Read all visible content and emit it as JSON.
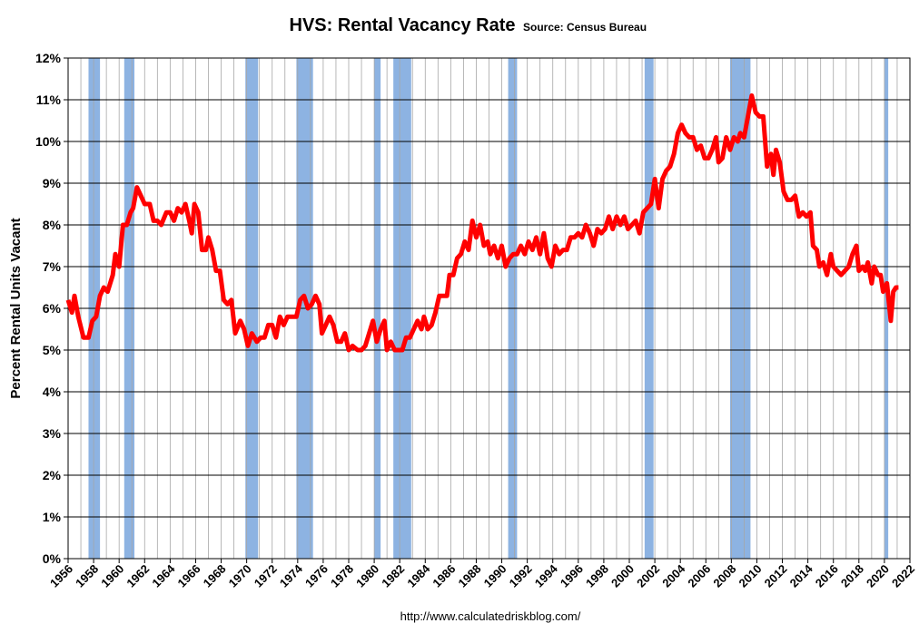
{
  "chart_data": {
    "type": "line",
    "title": "HVS: Rental Vacancy Rate",
    "subtitle": "Source: Census Bureau",
    "ylabel": "Percent Rental Units Vacant",
    "footer": "http://www.calculatedriskblog.com/",
    "x": [
      1956.0,
      1956.3,
      1956.5,
      1956.8,
      1957.2,
      1957.6,
      1957.9,
      1958.2,
      1958.5,
      1958.8,
      1959.1,
      1959.5,
      1959.7,
      1960.0,
      1960.3,
      1960.6,
      1960.9,
      1961.1,
      1961.4,
      1961.7,
      1962.0,
      1962.4,
      1962.7,
      1963.0,
      1963.3,
      1963.7,
      1964.0,
      1964.3,
      1964.6,
      1964.9,
      1965.2,
      1965.5,
      1965.7,
      1965.9,
      1966.2,
      1966.5,
      1966.8,
      1967.0,
      1967.3,
      1967.6,
      1967.9,
      1968.2,
      1968.5,
      1968.8,
      1969.1,
      1969.5,
      1969.8,
      1970.1,
      1970.4,
      1970.8,
      1971.1,
      1971.4,
      1971.7,
      1972.0,
      1972.3,
      1972.6,
      1972.9,
      1973.2,
      1973.6,
      1973.9,
      1974.2,
      1974.5,
      1974.8,
      1975.1,
      1975.4,
      1975.7,
      1975.9,
      1976.2,
      1976.5,
      1976.8,
      1977.1,
      1977.4,
      1977.7,
      1978.0,
      1978.3,
      1978.7,
      1979.0,
      1979.3,
      1979.6,
      1979.9,
      1980.2,
      1980.5,
      1980.8,
      1981.0,
      1981.3,
      1981.6,
      1981.9,
      1982.2,
      1982.5,
      1982.8,
      1983.1,
      1983.4,
      1983.7,
      1983.9,
      1984.2,
      1984.5,
      1984.8,
      1985.1,
      1985.4,
      1985.7,
      1985.9,
      1986.2,
      1986.5,
      1986.8,
      1987.1,
      1987.4,
      1987.7,
      1988.0,
      1988.3,
      1988.6,
      1988.9,
      1989.1,
      1989.4,
      1989.7,
      1990.0,
      1990.3,
      1990.6,
      1990.9,
      1991.2,
      1991.5,
      1991.8,
      1992.1,
      1992.4,
      1992.7,
      1993.0,
      1993.3,
      1993.6,
      1993.9,
      1994.2,
      1994.5,
      1994.8,
      1995.1,
      1995.4,
      1995.7,
      1996.0,
      1996.3,
      1996.6,
      1996.9,
      1997.2,
      1997.5,
      1997.8,
      1998.1,
      1998.4,
      1998.7,
      1999.0,
      1999.3,
      1999.6,
      1999.9,
      2000.2,
      2000.5,
      2000.8,
      2001.1,
      2001.4,
      2001.7,
      2002.0,
      2002.3,
      2002.6,
      2002.9,
      2003.2,
      2003.5,
      2003.8,
      2004.1,
      2004.4,
      2004.7,
      2005.0,
      2005.3,
      2005.6,
      2005.9,
      2006.2,
      2006.5,
      2006.8,
      2007.0,
      2007.3,
      2007.6,
      2007.9,
      2008.2,
      2008.5,
      2008.7,
      2009.0,
      2009.3,
      2009.6,
      2009.9,
      2010.2,
      2010.5,
      2010.8,
      2011.1,
      2011.3,
      2011.5,
      2011.8,
      2012.1,
      2012.4,
      2012.7,
      2013.0,
      2013.3,
      2013.6,
      2013.9,
      2014.2,
      2014.4,
      2014.7,
      2014.9,
      2015.2,
      2015.5,
      2015.8,
      2016.0,
      2016.3,
      2016.6,
      2016.9,
      2017.2,
      2017.5,
      2017.8,
      2018.0,
      2018.3,
      2018.5,
      2018.7,
      2019.0,
      2019.2,
      2019.5,
      2019.7,
      2019.9,
      2020.2,
      2020.5,
      2020.7,
      2020.9,
      2021.1
    ],
    "series": [
      {
        "name": "Rental Vacancy Rate",
        "color": "#ff0000",
        "values": [
          6.2,
          5.9,
          6.3,
          5.8,
          5.3,
          5.3,
          5.7,
          5.8,
          6.3,
          6.5,
          6.4,
          6.8,
          7.3,
          7.0,
          8.0,
          8.0,
          8.3,
          8.4,
          8.9,
          8.7,
          8.5,
          8.5,
          8.1,
          8.1,
          8.0,
          8.3,
          8.3,
          8.1,
          8.4,
          8.3,
          8.5,
          8.1,
          7.8,
          8.5,
          8.3,
          7.4,
          7.4,
          7.7,
          7.4,
          6.9,
          6.9,
          6.2,
          6.1,
          6.2,
          5.4,
          5.7,
          5.5,
          5.1,
          5.4,
          5.2,
          5.3,
          5.3,
          5.6,
          5.6,
          5.3,
          5.8,
          5.6,
          5.8,
          5.8,
          5.8,
          6.2,
          6.3,
          6.0,
          6.1,
          6.3,
          6.1,
          5.4,
          5.6,
          5.8,
          5.6,
          5.2,
          5.2,
          5.4,
          5.0,
          5.1,
          5.0,
          5.0,
          5.1,
          5.4,
          5.7,
          5.2,
          5.5,
          5.7,
          5.0,
          5.2,
          5.0,
          5.0,
          5.0,
          5.3,
          5.3,
          5.5,
          5.7,
          5.5,
          5.8,
          5.5,
          5.6,
          5.9,
          6.3,
          6.3,
          6.3,
          6.8,
          6.8,
          7.2,
          7.3,
          7.6,
          7.4,
          8.1,
          7.7,
          8.0,
          7.5,
          7.6,
          7.3,
          7.5,
          7.2,
          7.5,
          7.0,
          7.2,
          7.3,
          7.3,
          7.5,
          7.3,
          7.6,
          7.4,
          7.7,
          7.3,
          7.8,
          7.2,
          7.0,
          7.5,
          7.3,
          7.4,
          7.4,
          7.7,
          7.7,
          7.8,
          7.7,
          8.0,
          7.8,
          7.5,
          7.9,
          7.8,
          7.9,
          8.2,
          7.9,
          8.2,
          8.0,
          8.2,
          7.9,
          8.0,
          8.1,
          7.8,
          8.3,
          8.4,
          8.5,
          9.1,
          8.4,
          9.1,
          9.3,
          9.4,
          9.7,
          10.2,
          10.4,
          10.2,
          10.1,
          10.1,
          9.8,
          9.9,
          9.6,
          9.6,
          9.8,
          10.1,
          9.5,
          9.6,
          10.1,
          9.8,
          10.1,
          10.0,
          10.2,
          10.1,
          10.6,
          11.1,
          10.7,
          10.6,
          10.6,
          9.4,
          9.7,
          9.2,
          9.8,
          9.5,
          8.8,
          8.6,
          8.6,
          8.7,
          8.2,
          8.3,
          8.2,
          8.3,
          7.5,
          7.4,
          7.0,
          7.1,
          6.8,
          7.3,
          7.0,
          6.9,
          6.8,
          6.9,
          7.0,
          7.3,
          7.5,
          6.9,
          7.0,
          6.9,
          7.1,
          6.6,
          7.0,
          6.8,
          6.8,
          6.4,
          6.6,
          5.7,
          6.4,
          6.5,
          6.5
        ]
      }
    ],
    "recession_color": "#8db3e2",
    "recessions": [
      [
        1957.6,
        1958.5
      ],
      [
        1960.4,
        1961.2
      ],
      [
        1969.9,
        1970.9
      ],
      [
        1973.9,
        1975.2
      ],
      [
        1980.0,
        1980.5
      ],
      [
        1981.5,
        1982.9
      ],
      [
        1990.5,
        1991.2
      ],
      [
        2001.2,
        2001.9
      ],
      [
        2007.9,
        2009.5
      ],
      [
        2020.0,
        2020.3
      ]
    ],
    "xlim": [
      1956,
      2022
    ],
    "xticks": [
      1956,
      1958,
      1960,
      1962,
      1964,
      1966,
      1968,
      1970,
      1972,
      1974,
      1976,
      1978,
      1980,
      1982,
      1984,
      1986,
      1988,
      1990,
      1992,
      1994,
      1996,
      1998,
      2000,
      2002,
      2004,
      2006,
      2008,
      2010,
      2012,
      2014,
      2016,
      2018,
      2020,
      2022
    ],
    "xminor": [
      1957,
      1959,
      1961,
      1963,
      1965,
      1967,
      1969,
      1971,
      1973,
      1975,
      1977,
      1979,
      1981,
      1983,
      1985,
      1987,
      1989,
      1991,
      1993,
      1995,
      1997,
      1999,
      2001,
      2003,
      2005,
      2007,
      2009,
      2011,
      2013,
      2015,
      2017,
      2019,
      2021
    ],
    "ylim": [
      0,
      12
    ],
    "yticks": [
      {
        "value": 0,
        "label": "0%"
      },
      {
        "value": 1,
        "label": "1%"
      },
      {
        "value": 2,
        "label": "2%"
      },
      {
        "value": 3,
        "label": "3%"
      },
      {
        "value": 4,
        "label": "4%"
      },
      {
        "value": 5,
        "label": "5%"
      },
      {
        "value": 6,
        "label": "6%"
      },
      {
        "value": 7,
        "label": "7%"
      },
      {
        "value": 8,
        "label": "8%"
      },
      {
        "value": 9,
        "label": "9%"
      },
      {
        "value": 10,
        "label": "10%"
      },
      {
        "value": 11,
        "label": "11%"
      },
      {
        "value": 12,
        "label": "12%"
      }
    ],
    "grid": true
  }
}
